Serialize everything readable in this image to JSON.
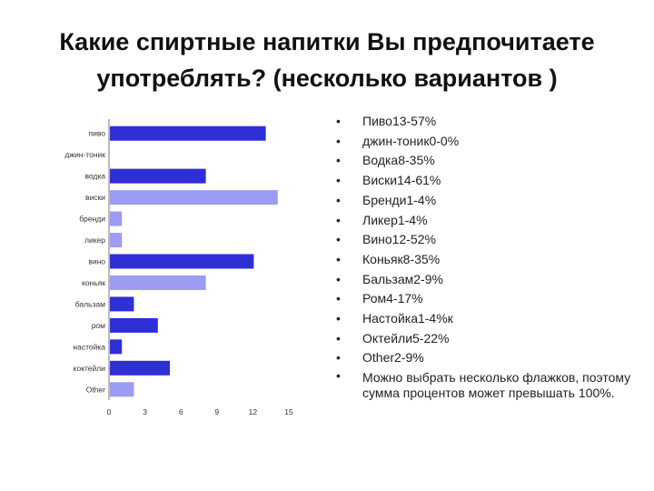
{
  "title": {
    "line1": "Какие спиртные напитки Вы предпочитаете",
    "line2": "употреблять? (несколько вариантов )"
  },
  "chart_data": {
    "type": "bar",
    "orientation": "horizontal",
    "categories": [
      "пиво",
      "джин-тоник",
      "водка",
      "виски",
      "бренди",
      "ликер",
      "вино",
      "коньяк",
      "бальзам",
      "ром",
      "настойка",
      "коктейли",
      "Other"
    ],
    "values": [
      13,
      0,
      8,
      14,
      1,
      1,
      12,
      8,
      2,
      4,
      1,
      5,
      2
    ],
    "bar_colors": [
      "#2f2fd6",
      "#2f2fd6",
      "#2f2fd6",
      "#9c9cf2",
      "#9c9cf2",
      "#9c9cf2",
      "#2f2fd6",
      "#9c9cf2",
      "#2f2fd6",
      "#2f2fd6",
      "#2f2fd6",
      "#2f2fd6",
      "#9c9cf2"
    ],
    "xticks": [
      "0",
      "3",
      "6",
      "9",
      "12",
      "15"
    ],
    "xlim": [
      0,
      15
    ],
    "grid": false,
    "legend": "none",
    "title": "",
    "xlabel": "",
    "ylabel": ""
  },
  "bullets": [
    "Пиво13-57%",
    "джин-тоник0-0%",
    "Водка8-35%",
    "Виски14-61%",
    "Бренди1-4%",
    "Ликер1-4%",
    "Вино12-52%",
    "Коньяк8-35%",
    "Бальзам2-9%",
    "Ром4-17%",
    "Настойка1-4%к",
    "Октейли5-22%",
    "Other2-9%",
    "Можно выбрать несколько флажков, поэтому сумма процентов может превышать 100%."
  ]
}
